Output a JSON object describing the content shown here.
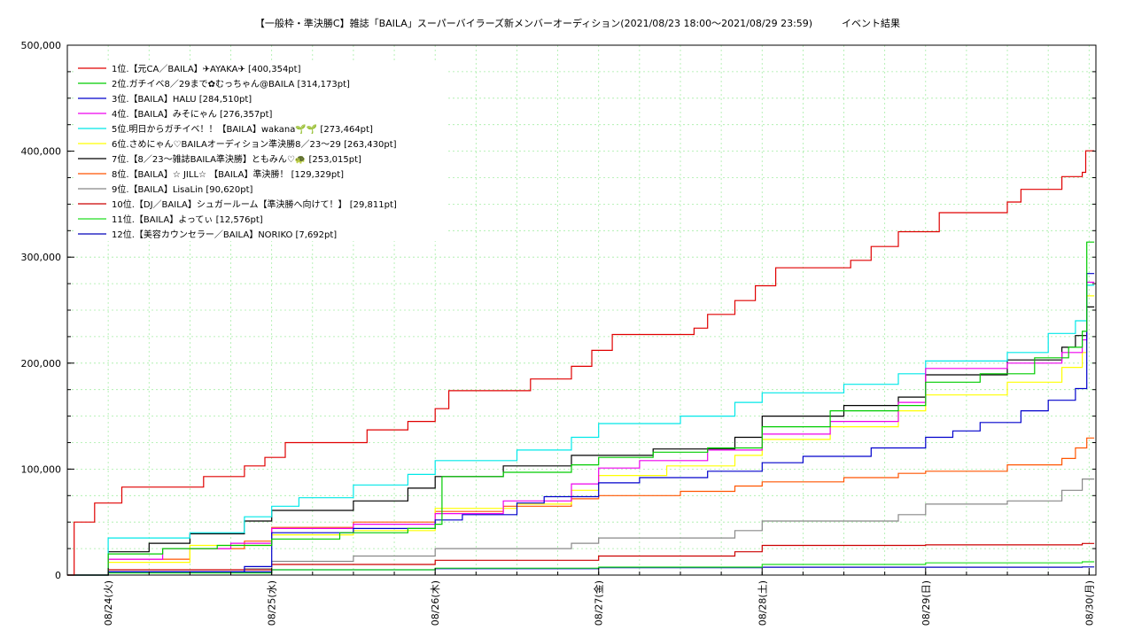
{
  "chart_data": {
    "type": "line",
    "title": "【一般枠・準決勝C】雑誌「BAILA」スーパーバイラーズ新メンバーオーディション(2021/08/23 18:00〜2021/08/29 23:59)　　　イベント結果",
    "xlabel": "",
    "ylabel": "",
    "x_range": [
      "2021-08-23 18:00",
      "2021-08-30 01:00"
    ],
    "ylim": [
      0,
      500000
    ],
    "y_ticks": [
      0,
      100000,
      200000,
      300000,
      400000,
      500000
    ],
    "y_tick_labels": [
      "0",
      "100,000",
      "200,000",
      "300,000",
      "400,000",
      "500,000"
    ],
    "x_ticks": [
      "2021-08-24 00:00",
      "2021-08-25 00:00",
      "2021-08-26 00:00",
      "2021-08-27 00:00",
      "2021-08-28 00:00",
      "2021-08-29 00:00",
      "2021-08-30 00:00"
    ],
    "x_tick_labels": [
      "08/24(火)",
      "08/25(水)",
      "08/26(木)",
      "08/27(金)",
      "08/28(土)",
      "08/29(日)",
      "08/30(月)"
    ],
    "grid": true,
    "legend_position": "top-left",
    "series": [
      {
        "name": "1位.【元CA／BAILA】✈AYAKA✈ [400,354pt]",
        "color": "#e00000",
        "points": [
          [
            "2021-08-23 18:00",
            0
          ],
          [
            "2021-08-23 19:00",
            50000
          ],
          [
            "2021-08-23 22:00",
            68000
          ],
          [
            "2021-08-24 02:00",
            83000
          ],
          [
            "2021-08-24 08:00",
            83000
          ],
          [
            "2021-08-24 14:00",
            93000
          ],
          [
            "2021-08-24 20:00",
            103000
          ],
          [
            "2021-08-24 23:00",
            111000
          ],
          [
            "2021-08-25 02:00",
            125000
          ],
          [
            "2021-08-25 14:00",
            137000
          ],
          [
            "2021-08-25 20:00",
            145000
          ],
          [
            "2021-08-26 00:00",
            157000
          ],
          [
            "2021-08-26 02:00",
            174000
          ],
          [
            "2021-08-26 14:00",
            185000
          ],
          [
            "2021-08-26 20:00",
            197000
          ],
          [
            "2021-08-26 23:00",
            212000
          ],
          [
            "2021-08-27 02:00",
            227000
          ],
          [
            "2021-08-27 14:00",
            233000
          ],
          [
            "2021-08-27 16:00",
            246000
          ],
          [
            "2021-08-27 20:00",
            259000
          ],
          [
            "2021-08-27 23:00",
            273000
          ],
          [
            "2021-08-28 02:00",
            290000
          ],
          [
            "2021-08-28 13:00",
            297000
          ],
          [
            "2021-08-28 16:00",
            310000
          ],
          [
            "2021-08-28 20:00",
            324000
          ],
          [
            "2021-08-29 02:00",
            342000
          ],
          [
            "2021-08-29 12:00",
            352000
          ],
          [
            "2021-08-29 14:00",
            364000
          ],
          [
            "2021-08-29 20:00",
            376000
          ],
          [
            "2021-08-29 23:00",
            380000
          ],
          [
            "2021-08-29 23:30",
            400354
          ],
          [
            "2021-08-30 00:45",
            400354
          ]
        ]
      },
      {
        "name": "2位.ガチイベ8／29まで✿むっちゃん@BAILA [314,173pt]",
        "color": "#00cc00",
        "points": [
          [
            "2021-08-23 18:00",
            0
          ],
          [
            "2021-08-24 00:00",
            20000
          ],
          [
            "2021-08-24 08:00",
            25000
          ],
          [
            "2021-08-24 16:00",
            28000
          ],
          [
            "2021-08-25 00:00",
            34000
          ],
          [
            "2021-08-25 10:00",
            40000
          ],
          [
            "2021-08-25 20:00",
            44000
          ],
          [
            "2021-08-26 00:00",
            48000
          ],
          [
            "2021-08-26 01:00",
            93000
          ],
          [
            "2021-08-26 10:00",
            97000
          ],
          [
            "2021-08-26 20:00",
            104000
          ],
          [
            "2021-08-27 00:00",
            111000
          ],
          [
            "2021-08-27 08:00",
            116000
          ],
          [
            "2021-08-27 16:00",
            120000
          ],
          [
            "2021-08-28 00:00",
            140000
          ],
          [
            "2021-08-28 10:00",
            155000
          ],
          [
            "2021-08-28 20:00",
            160000
          ],
          [
            "2021-08-29 00:00",
            182000
          ],
          [
            "2021-08-29 08:00",
            190000
          ],
          [
            "2021-08-29 16:00",
            205000
          ],
          [
            "2021-08-29 21:00",
            215000
          ],
          [
            "2021-08-29 23:00",
            230000
          ],
          [
            "2021-08-29 23:40",
            314173
          ],
          [
            "2021-08-30 00:45",
            314173
          ]
        ]
      },
      {
        "name": "3位.【BAILA】HALU [284,510pt]",
        "color": "#0000cc",
        "points": [
          [
            "2021-08-23 18:00",
            0
          ],
          [
            "2021-08-24 00:00",
            3000
          ],
          [
            "2021-08-24 20:00",
            8000
          ],
          [
            "2021-08-25 00:00",
            40000
          ],
          [
            "2021-08-25 12:00",
            44000
          ],
          [
            "2021-08-26 00:00",
            52000
          ],
          [
            "2021-08-26 04:00",
            57000
          ],
          [
            "2021-08-26 12:00",
            68000
          ],
          [
            "2021-08-26 16:00",
            74000
          ],
          [
            "2021-08-27 00:00",
            87000
          ],
          [
            "2021-08-27 06:00",
            92000
          ],
          [
            "2021-08-27 16:00",
            98000
          ],
          [
            "2021-08-28 00:00",
            106000
          ],
          [
            "2021-08-28 06:00",
            112000
          ],
          [
            "2021-08-28 16:00",
            120000
          ],
          [
            "2021-08-29 00:00",
            130000
          ],
          [
            "2021-08-29 04:00",
            136000
          ],
          [
            "2021-08-29 08:00",
            144000
          ],
          [
            "2021-08-29 14:00",
            155000
          ],
          [
            "2021-08-29 18:00",
            165000
          ],
          [
            "2021-08-29 22:00",
            176000
          ],
          [
            "2021-08-29 23:40",
            284510
          ],
          [
            "2021-08-30 00:45",
            284510
          ]
        ]
      },
      {
        "name": "4位.【BAILA】みそにゃん [276,357pt]",
        "color": "#ee00ee",
        "points": [
          [
            "2021-08-23 18:00",
            0
          ],
          [
            "2021-08-24 00:00",
            15000
          ],
          [
            "2021-08-24 08:00",
            25000
          ],
          [
            "2021-08-24 18:00",
            30000
          ],
          [
            "2021-08-25 00:00",
            44000
          ],
          [
            "2021-08-25 12:00",
            48000
          ],
          [
            "2021-08-26 00:00",
            58000
          ],
          [
            "2021-08-26 10:00",
            70000
          ],
          [
            "2021-08-26 20:00",
            86000
          ],
          [
            "2021-08-27 00:00",
            101000
          ],
          [
            "2021-08-27 06:00",
            108000
          ],
          [
            "2021-08-27 16:00",
            118000
          ],
          [
            "2021-08-28 00:00",
            133000
          ],
          [
            "2021-08-28 10:00",
            145000
          ],
          [
            "2021-08-28 20:00",
            163000
          ],
          [
            "2021-08-29 00:00",
            195000
          ],
          [
            "2021-08-29 12:00",
            200000
          ],
          [
            "2021-08-29 20:00",
            210000
          ],
          [
            "2021-08-29 23:00",
            222000
          ],
          [
            "2021-08-29 23:40",
            276357
          ],
          [
            "2021-08-30 00:45",
            276357
          ]
        ]
      },
      {
        "name": "5位.明日からガチイベ！！【BAILA】wakana🌱🌱 [273,464pt]",
        "color": "#00e8e8",
        "points": [
          [
            "2021-08-23 18:00",
            0
          ],
          [
            "2021-08-24 00:00",
            35000
          ],
          [
            "2021-08-24 12:00",
            40000
          ],
          [
            "2021-08-24 20:00",
            55000
          ],
          [
            "2021-08-25 00:00",
            65000
          ],
          [
            "2021-08-25 04:00",
            73000
          ],
          [
            "2021-08-25 12:00",
            85000
          ],
          [
            "2021-08-25 20:00",
            95000
          ],
          [
            "2021-08-26 00:00",
            108000
          ],
          [
            "2021-08-26 12:00",
            118000
          ],
          [
            "2021-08-26 20:00",
            130000
          ],
          [
            "2021-08-27 00:00",
            143000
          ],
          [
            "2021-08-27 12:00",
            150000
          ],
          [
            "2021-08-27 20:00",
            163000
          ],
          [
            "2021-08-28 00:00",
            172000
          ],
          [
            "2021-08-28 12:00",
            180000
          ],
          [
            "2021-08-28 20:00",
            190000
          ],
          [
            "2021-08-29 00:00",
            202000
          ],
          [
            "2021-08-29 12:00",
            210000
          ],
          [
            "2021-08-29 18:00",
            228000
          ],
          [
            "2021-08-29 22:00",
            240000
          ],
          [
            "2021-08-29 23:40",
            273464
          ],
          [
            "2021-08-30 00:45",
            273464
          ]
        ]
      },
      {
        "name": "6位.さめにゃん♡BAILAオーディション準決勝8／23〜29 [263,430pt]",
        "color": "#ffff00",
        "points": [
          [
            "2021-08-23 18:00",
            0
          ],
          [
            "2021-08-24 00:00",
            12000
          ],
          [
            "2021-08-24 12:00",
            28000
          ],
          [
            "2021-08-25 00:00",
            38000
          ],
          [
            "2021-08-25 12:00",
            42000
          ],
          [
            "2021-08-26 00:00",
            63000
          ],
          [
            "2021-08-26 12:00",
            67000
          ],
          [
            "2021-08-26 20:00",
            80000
          ],
          [
            "2021-08-27 00:00",
            94000
          ],
          [
            "2021-08-27 10:00",
            103000
          ],
          [
            "2021-08-27 20:00",
            113000
          ],
          [
            "2021-08-28 00:00",
            128000
          ],
          [
            "2021-08-28 10:00",
            140000
          ],
          [
            "2021-08-28 20:00",
            155000
          ],
          [
            "2021-08-29 00:00",
            170000
          ],
          [
            "2021-08-29 12:00",
            182000
          ],
          [
            "2021-08-29 20:00",
            196000
          ],
          [
            "2021-08-29 23:00",
            210000
          ],
          [
            "2021-08-29 23:40",
            263430
          ],
          [
            "2021-08-30 00:45",
            263430
          ]
        ]
      },
      {
        "name": "7位.【8／23〜雑誌BAILA準決勝】ともみん♡🐢 [253,015pt]",
        "color": "#000000",
        "points": [
          [
            "2021-08-23 18:00",
            0
          ],
          [
            "2021-08-24 00:00",
            22000
          ],
          [
            "2021-08-24 06:00",
            30000
          ],
          [
            "2021-08-24 12:00",
            39000
          ],
          [
            "2021-08-24 20:00",
            51000
          ],
          [
            "2021-08-25 00:00",
            61000
          ],
          [
            "2021-08-25 12:00",
            70000
          ],
          [
            "2021-08-25 20:00",
            82000
          ],
          [
            "2021-08-26 00:00",
            93000
          ],
          [
            "2021-08-26 10:00",
            103000
          ],
          [
            "2021-08-26 20:00",
            113000
          ],
          [
            "2021-08-27 00:00",
            113000
          ],
          [
            "2021-08-27 08:00",
            119000
          ],
          [
            "2021-08-27 20:00",
            130000
          ],
          [
            "2021-08-28 00:00",
            150000
          ],
          [
            "2021-08-28 12:00",
            160000
          ],
          [
            "2021-08-28 20:00",
            168000
          ],
          [
            "2021-08-29 00:00",
            189000
          ],
          [
            "2021-08-29 12:00",
            203000
          ],
          [
            "2021-08-29 20:00",
            215000
          ],
          [
            "2021-08-29 22:00",
            226000
          ],
          [
            "2021-08-29 23:40",
            253015
          ],
          [
            "2021-08-30 00:45",
            253015
          ]
        ]
      },
      {
        "name": "8位.【BAILA】☆ JILL☆ 【BAILA】準決勝！ [129,329pt]",
        "color": "#ff5500",
        "points": [
          [
            "2021-08-23 18:00",
            0
          ],
          [
            "2021-08-24 00:00",
            15000
          ],
          [
            "2021-08-24 12:00",
            25000
          ],
          [
            "2021-08-24 20:00",
            32000
          ],
          [
            "2021-08-25 00:00",
            45000
          ],
          [
            "2021-08-25 12:00",
            50000
          ],
          [
            "2021-08-26 00:00",
            60000
          ],
          [
            "2021-08-26 10:00",
            65000
          ],
          [
            "2021-08-26 20:00",
            72000
          ],
          [
            "2021-08-27 00:00",
            75000
          ],
          [
            "2021-08-27 12:00",
            79000
          ],
          [
            "2021-08-27 20:00",
            84000
          ],
          [
            "2021-08-28 00:00",
            88000
          ],
          [
            "2021-08-28 12:00",
            92000
          ],
          [
            "2021-08-28 20:00",
            96000
          ],
          [
            "2021-08-29 00:00",
            98000
          ],
          [
            "2021-08-29 12:00",
            104000
          ],
          [
            "2021-08-29 20:00",
            110000
          ],
          [
            "2021-08-29 22:00",
            120000
          ],
          [
            "2021-08-29 23:40",
            129329
          ],
          [
            "2021-08-30 00:45",
            129329
          ]
        ]
      },
      {
        "name": "9位.【BAILA】LisaLin [90,620pt]",
        "color": "#888888",
        "points": [
          [
            "2021-08-23 18:00",
            0
          ],
          [
            "2021-08-24 00:00",
            3000
          ],
          [
            "2021-08-24 20:00",
            6000
          ],
          [
            "2021-08-25 00:00",
            13000
          ],
          [
            "2021-08-25 12:00",
            18000
          ],
          [
            "2021-08-26 00:00",
            25000
          ],
          [
            "2021-08-26 20:00",
            30000
          ],
          [
            "2021-08-27 00:00",
            35000
          ],
          [
            "2021-08-27 20:00",
            42000
          ],
          [
            "2021-08-28 00:00",
            51000
          ],
          [
            "2021-08-28 20:00",
            57000
          ],
          [
            "2021-08-29 00:00",
            67000
          ],
          [
            "2021-08-29 12:00",
            70000
          ],
          [
            "2021-08-29 20:00",
            80000
          ],
          [
            "2021-08-29 23:00",
            90620
          ],
          [
            "2021-08-30 00:45",
            90620
          ]
        ]
      },
      {
        "name": "10位.【DJ／BAILA】シュガールーム【準決勝へ向けて！】 [29,811pt]",
        "color": "#cc0000",
        "points": [
          [
            "2021-08-23 18:00",
            0
          ],
          [
            "2021-08-24 00:00",
            5000
          ],
          [
            "2021-08-25 00:00",
            10000
          ],
          [
            "2021-08-26 00:00",
            14000
          ],
          [
            "2021-08-27 00:00",
            18000
          ],
          [
            "2021-08-27 20:00",
            22000
          ],
          [
            "2021-08-28 00:00",
            28000
          ],
          [
            "2021-08-29 00:00",
            28500
          ],
          [
            "2021-08-29 23:00",
            29811
          ],
          [
            "2021-08-30 00:45",
            29811
          ]
        ]
      },
      {
        "name": "11位.【BAILA】よってぃ [12,576pt]",
        "color": "#22dd22",
        "points": [
          [
            "2021-08-23 18:00",
            0
          ],
          [
            "2021-08-24 00:00",
            2000
          ],
          [
            "2021-08-25 00:00",
            5000
          ],
          [
            "2021-08-26 00:00",
            6500
          ],
          [
            "2021-08-27 00:00",
            7500
          ],
          [
            "2021-08-28 00:00",
            10000
          ],
          [
            "2021-08-29 00:00",
            11500
          ],
          [
            "2021-08-29 23:00",
            12576
          ],
          [
            "2021-08-30 00:45",
            12576
          ]
        ]
      },
      {
        "name": "12位.【美容カウンセラー／BAILA】NORIKO [7,692pt]",
        "color": "#0000bb",
        "points": [
          [
            "2021-08-23 18:00",
            0
          ],
          [
            "2021-08-24 00:00",
            3000
          ],
          [
            "2021-08-25 00:00",
            5000
          ],
          [
            "2021-08-26 00:00",
            6000
          ],
          [
            "2021-08-27 00:00",
            7000
          ],
          [
            "2021-08-28 00:00",
            7400
          ],
          [
            "2021-08-29 23:00",
            7692
          ],
          [
            "2021-08-30 00:45",
            7692
          ]
        ]
      }
    ]
  }
}
